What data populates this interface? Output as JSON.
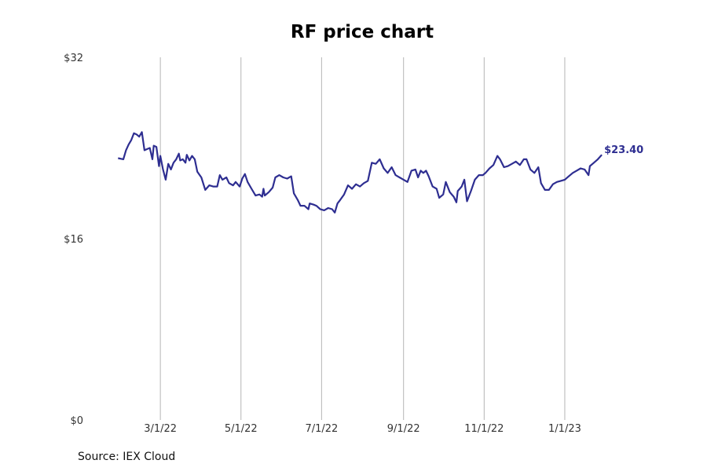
{
  "chart_data": {
    "type": "line",
    "title": "RF price chart",
    "xlabel": "",
    "ylabel": "",
    "ylim": [
      0,
      32
    ],
    "y_ticks": [
      {
        "value": 0,
        "label": "$0"
      },
      {
        "value": 16,
        "label": "$16"
      },
      {
        "value": 32,
        "label": "$32"
      }
    ],
    "xlim": [
      "2022-01-10",
      "2023-03-08"
    ],
    "x_ticks": [
      {
        "date": "2022-03-01",
        "label": "3/1/22"
      },
      {
        "date": "2022-05-01",
        "label": "5/1/22"
      },
      {
        "date": "2022-07-01",
        "label": "7/1/22"
      },
      {
        "date": "2022-09-01",
        "label": "9/1/22"
      },
      {
        "date": "2022-11-01",
        "label": "11/1/22"
      },
      {
        "date": "2023-01-01",
        "label": "1/1/23"
      }
    ],
    "grid": "vertical",
    "line_color": "#2e2e91",
    "end_label": "$23.40",
    "series": [
      {
        "points": [
          [
            "2022-01-28",
            23.1
          ],
          [
            "2022-02-01",
            23.0
          ],
          [
            "2022-02-03",
            23.8
          ],
          [
            "2022-02-05",
            24.3
          ],
          [
            "2022-02-07",
            24.7
          ],
          [
            "2022-02-09",
            25.3
          ],
          [
            "2022-02-11",
            25.2
          ],
          [
            "2022-02-13",
            25.0
          ],
          [
            "2022-02-15",
            25.4
          ],
          [
            "2022-02-17",
            23.8
          ],
          [
            "2022-02-19",
            23.9
          ],
          [
            "2022-02-21",
            24.0
          ],
          [
            "2022-02-23",
            23.0
          ],
          [
            "2022-02-24",
            24.2
          ],
          [
            "2022-02-26",
            24.1
          ],
          [
            "2022-02-28",
            22.4
          ],
          [
            "2022-03-01",
            23.3
          ],
          [
            "2022-03-03",
            22.1
          ],
          [
            "2022-03-05",
            21.2
          ],
          [
            "2022-03-07",
            22.6
          ],
          [
            "2022-03-09",
            22.1
          ],
          [
            "2022-03-11",
            22.7
          ],
          [
            "2022-03-13",
            23.0
          ],
          [
            "2022-03-15",
            23.5
          ],
          [
            "2022-03-16",
            22.9
          ],
          [
            "2022-03-18",
            23.0
          ],
          [
            "2022-03-20",
            22.7
          ],
          [
            "2022-03-21",
            23.4
          ],
          [
            "2022-03-23",
            22.9
          ],
          [
            "2022-03-25",
            23.3
          ],
          [
            "2022-03-27",
            23.0
          ],
          [
            "2022-03-29",
            21.9
          ],
          [
            "2022-04-01",
            21.4
          ],
          [
            "2022-04-04",
            20.3
          ],
          [
            "2022-04-07",
            20.7
          ],
          [
            "2022-04-10",
            20.6
          ],
          [
            "2022-04-13",
            20.6
          ],
          [
            "2022-04-15",
            21.6
          ],
          [
            "2022-04-17",
            21.2
          ],
          [
            "2022-04-20",
            21.4
          ],
          [
            "2022-04-22",
            20.9
          ],
          [
            "2022-04-25",
            20.7
          ],
          [
            "2022-04-27",
            21.0
          ],
          [
            "2022-04-30",
            20.6
          ],
          [
            "2022-05-02",
            21.3
          ],
          [
            "2022-05-04",
            21.7
          ],
          [
            "2022-05-06",
            21.0
          ],
          [
            "2022-05-09",
            20.4
          ],
          [
            "2022-05-12",
            19.8
          ],
          [
            "2022-05-15",
            19.9
          ],
          [
            "2022-05-17",
            19.7
          ],
          [
            "2022-05-18",
            20.4
          ],
          [
            "2022-05-19",
            19.8
          ],
          [
            "2022-05-22",
            20.1
          ],
          [
            "2022-05-25",
            20.5
          ],
          [
            "2022-05-27",
            21.4
          ],
          [
            "2022-05-30",
            21.6
          ],
          [
            "2022-06-02",
            21.4
          ],
          [
            "2022-06-05",
            21.3
          ],
          [
            "2022-06-08",
            21.5
          ],
          [
            "2022-06-10",
            20.0
          ],
          [
            "2022-06-13",
            19.4
          ],
          [
            "2022-06-15",
            18.9
          ],
          [
            "2022-06-18",
            18.9
          ],
          [
            "2022-06-21",
            18.6
          ],
          [
            "2022-06-22",
            19.1
          ],
          [
            "2022-06-25",
            19.0
          ],
          [
            "2022-06-27",
            18.9
          ],
          [
            "2022-06-30",
            18.6
          ],
          [
            "2022-07-03",
            18.5
          ],
          [
            "2022-07-06",
            18.7
          ],
          [
            "2022-07-09",
            18.6
          ],
          [
            "2022-07-11",
            18.3
          ],
          [
            "2022-07-13",
            19.1
          ],
          [
            "2022-07-15",
            19.4
          ],
          [
            "2022-07-18",
            19.9
          ],
          [
            "2022-07-21",
            20.7
          ],
          [
            "2022-07-24",
            20.4
          ],
          [
            "2022-07-27",
            20.8
          ],
          [
            "2022-07-30",
            20.6
          ],
          [
            "2022-08-02",
            20.9
          ],
          [
            "2022-08-05",
            21.1
          ],
          [
            "2022-08-08",
            22.7
          ],
          [
            "2022-08-11",
            22.6
          ],
          [
            "2022-08-14",
            23.0
          ],
          [
            "2022-08-17",
            22.2
          ],
          [
            "2022-08-20",
            21.8
          ],
          [
            "2022-08-23",
            22.3
          ],
          [
            "2022-08-26",
            21.6
          ],
          [
            "2022-08-29",
            21.4
          ],
          [
            "2022-09-01",
            21.2
          ],
          [
            "2022-09-04",
            21.0
          ],
          [
            "2022-09-07",
            22.0
          ],
          [
            "2022-09-10",
            22.1
          ],
          [
            "2022-09-12",
            21.4
          ],
          [
            "2022-09-14",
            22.0
          ],
          [
            "2022-09-16",
            21.8
          ],
          [
            "2022-09-18",
            22.0
          ],
          [
            "2022-09-20",
            21.5
          ],
          [
            "2022-09-23",
            20.6
          ],
          [
            "2022-09-26",
            20.4
          ],
          [
            "2022-09-28",
            19.6
          ],
          [
            "2022-10-01",
            19.9
          ],
          [
            "2022-10-03",
            21.0
          ],
          [
            "2022-10-06",
            20.1
          ],
          [
            "2022-10-09",
            19.7
          ],
          [
            "2022-10-11",
            19.2
          ],
          [
            "2022-10-12",
            20.2
          ],
          [
            "2022-10-15",
            20.6
          ],
          [
            "2022-10-17",
            21.2
          ],
          [
            "2022-10-19",
            19.3
          ],
          [
            "2022-10-22",
            20.2
          ],
          [
            "2022-10-25",
            21.2
          ],
          [
            "2022-10-28",
            21.6
          ],
          [
            "2022-10-31",
            21.6
          ],
          [
            "2022-11-02",
            21.8
          ],
          [
            "2022-11-05",
            22.2
          ],
          [
            "2022-11-08",
            22.5
          ],
          [
            "2022-11-11",
            23.3
          ],
          [
            "2022-11-13",
            23.0
          ],
          [
            "2022-11-16",
            22.3
          ],
          [
            "2022-11-19",
            22.4
          ],
          [
            "2022-11-22",
            22.6
          ],
          [
            "2022-11-25",
            22.8
          ],
          [
            "2022-11-28",
            22.5
          ],
          [
            "2022-12-01",
            23.0
          ],
          [
            "2022-12-03",
            23.0
          ],
          [
            "2022-12-06",
            22.1
          ],
          [
            "2022-12-09",
            21.8
          ],
          [
            "2022-12-12",
            22.3
          ],
          [
            "2022-12-14",
            20.9
          ],
          [
            "2022-12-17",
            20.3
          ],
          [
            "2022-12-20",
            20.3
          ],
          [
            "2022-12-23",
            20.8
          ],
          [
            "2022-12-26",
            21.0
          ],
          [
            "2022-12-29",
            21.1
          ],
          [
            "2023-01-01",
            21.2
          ],
          [
            "2023-01-04",
            21.5
          ],
          [
            "2023-01-07",
            21.8
          ],
          [
            "2023-01-10",
            22.0
          ],
          [
            "2023-01-13",
            22.2
          ],
          [
            "2023-01-16",
            22.1
          ],
          [
            "2023-01-19",
            21.6
          ],
          [
            "2023-01-20",
            22.4
          ],
          [
            "2023-01-23",
            22.7
          ],
          [
            "2023-01-26",
            23.0
          ],
          [
            "2023-01-29",
            23.4
          ]
        ]
      }
    ]
  },
  "footer": {
    "source": "Source: IEX Cloud"
  }
}
